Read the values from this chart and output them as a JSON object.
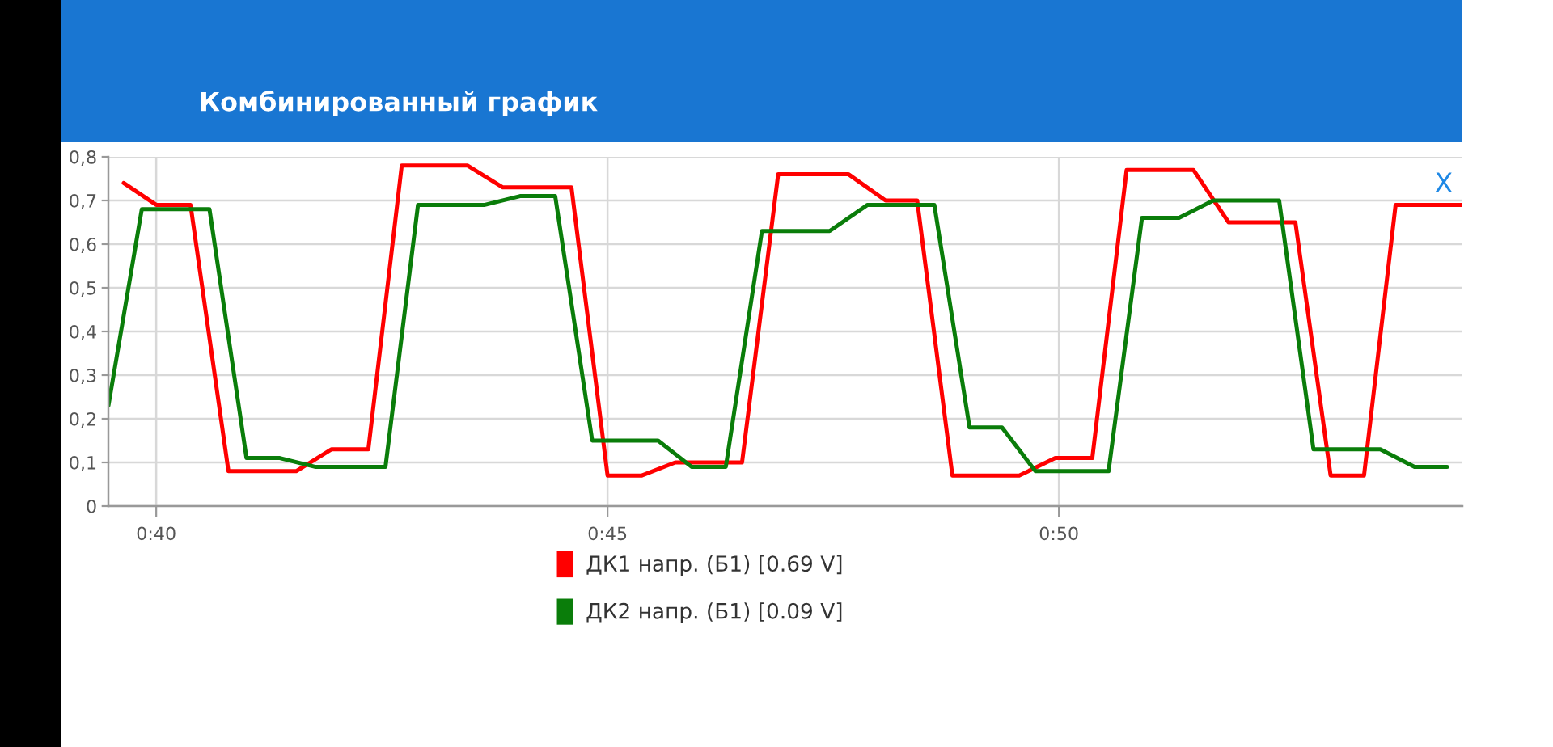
{
  "chart_data": {
    "type": "line",
    "title": "Комбинированный график",
    "annotations": [
      "X"
    ],
    "xlim": [
      39.47,
      54.47
    ],
    "xticks": [
      {
        "value": 40,
        "label": "0:40"
      },
      {
        "value": 45,
        "label": "0:45"
      },
      {
        "value": 50,
        "label": "0:50"
      }
    ],
    "ylim": [
      0,
      0.8
    ],
    "yticks": [
      0,
      {
        "value": 0.1,
        "label": "0,1"
      },
      {
        "value": 0.2,
        "label": "0,2"
      },
      {
        "value": 0.3,
        "label": "0,3"
      },
      {
        "value": 0.4,
        "label": "0,4"
      },
      {
        "value": 0.5,
        "label": "0,5"
      },
      {
        "value": 0.6,
        "label": "0,6"
      },
      {
        "value": 0.7,
        "label": "0,7"
      },
      {
        "value": 0.8,
        "label": "0,8"
      }
    ],
    "grid": true,
    "legend": "bottom",
    "series": [
      {
        "name": "ДК1 напр. (Б1) [0.69 V]",
        "color": "#ff0000",
        "x": [
          39.64,
          40.0,
          40.38,
          40.8,
          41.55,
          41.94,
          42.35,
          42.72,
          43.45,
          43.84,
          44.6,
          45.0,
          45.38,
          45.75,
          46.49,
          46.89,
          47.67,
          48.08,
          48.43,
          48.82,
          49.56,
          49.96,
          50.37,
          50.75,
          51.49,
          51.88,
          52.62,
          53.01,
          53.38,
          53.73,
          54.47
        ],
        "values": [
          0.74,
          0.69,
          0.69,
          0.08,
          0.08,
          0.13,
          0.13,
          0.78,
          0.78,
          0.73,
          0.73,
          0.07,
          0.07,
          0.1,
          0.1,
          0.76,
          0.76,
          0.7,
          0.7,
          0.07,
          0.07,
          0.11,
          0.11,
          0.77,
          0.77,
          0.65,
          0.65,
          0.07,
          0.07,
          0.69,
          0.69
        ]
      },
      {
        "name": "ДК2 напр. (Б1) [0.09 V]",
        "color": "#0a7d0a",
        "x": [
          39.47,
          39.84,
          40.59,
          41.0,
          41.37,
          41.76,
          42.54,
          42.9,
          43.64,
          44.03,
          44.42,
          44.83,
          45.56,
          45.93,
          46.31,
          46.71,
          47.46,
          47.88,
          48.62,
          49.01,
          49.37,
          49.74,
          50.55,
          50.92,
          51.33,
          51.71,
          52.44,
          52.82,
          53.56,
          53.94,
          54.3
        ],
        "values": [
          0.23,
          0.68,
          0.68,
          0.11,
          0.11,
          0.09,
          0.09,
          0.69,
          0.69,
          0.71,
          0.71,
          0.15,
          0.15,
          0.09,
          0.09,
          0.63,
          0.63,
          0.69,
          0.69,
          0.18,
          0.18,
          0.08,
          0.08,
          0.66,
          0.66,
          0.7,
          0.7,
          0.13,
          0.13,
          0.09,
          0.09
        ]
      }
    ]
  }
}
